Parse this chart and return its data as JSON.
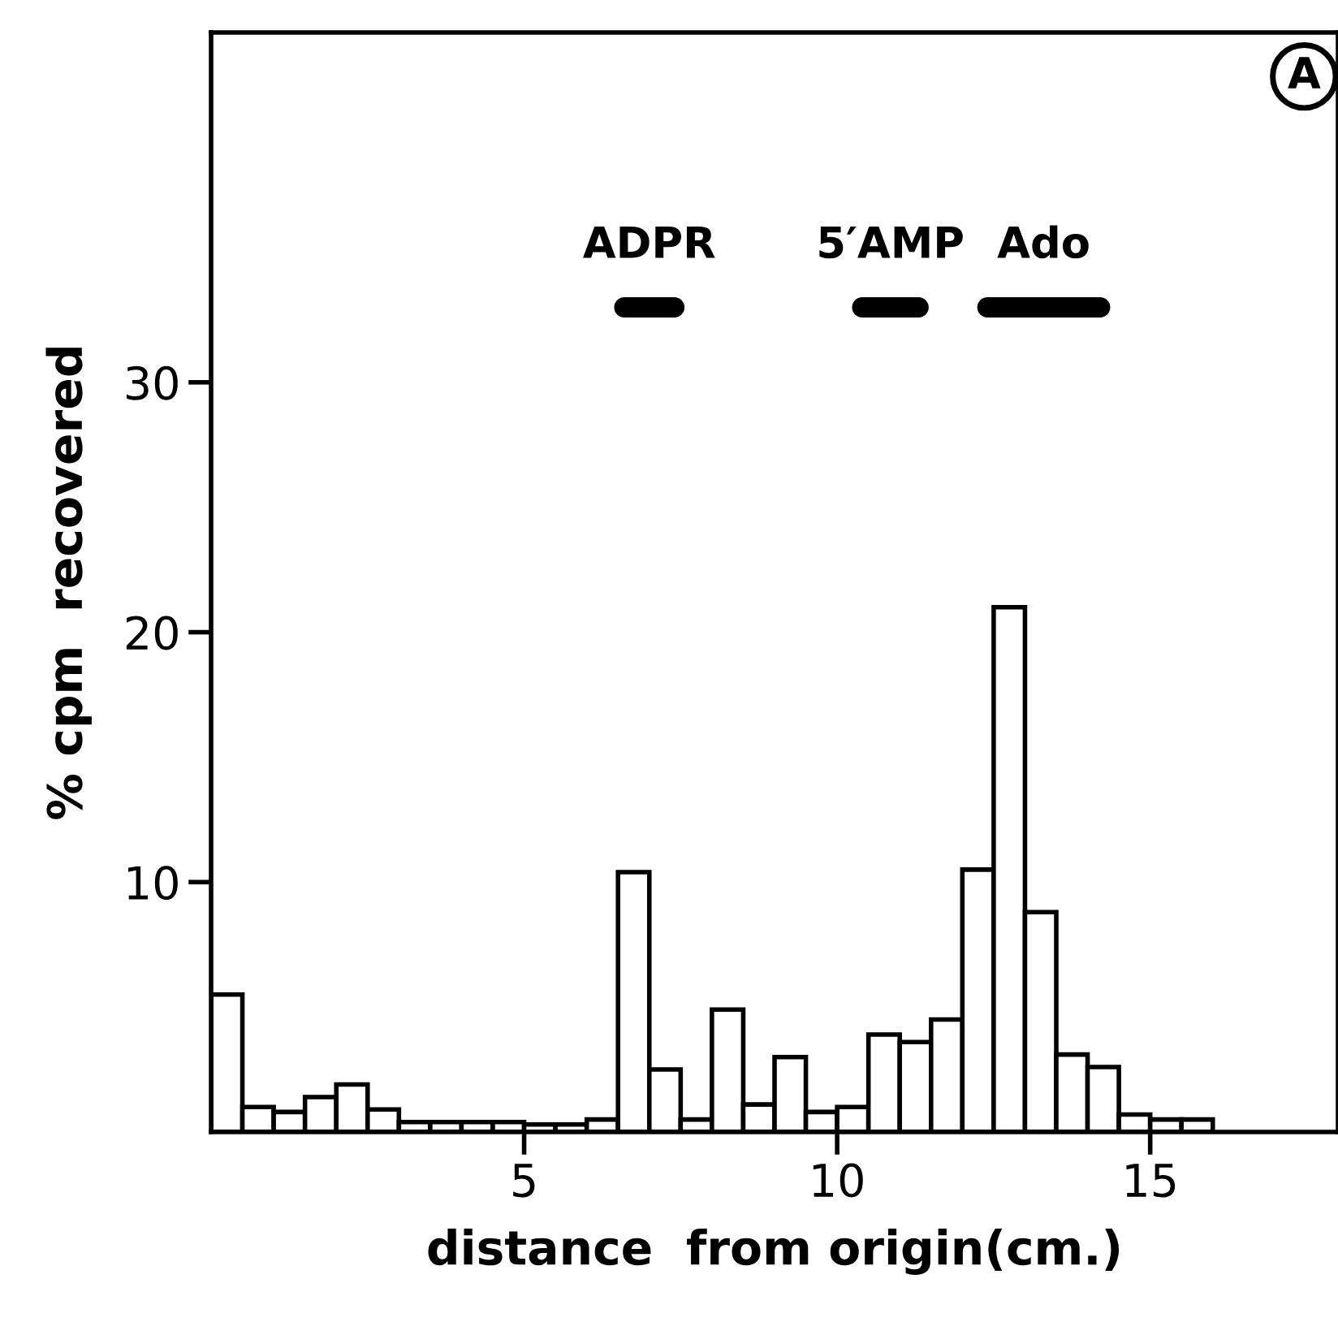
{
  "chart_data": {
    "type": "histogram",
    "xlabel": "distance  from origin(cm.)",
    "ylabel": "% cpm  recovered",
    "bins": [
      0,
      0.5,
      1,
      1.5,
      2,
      2.5,
      3,
      3.5,
      4,
      4.5,
      5,
      5.5,
      6,
      6.5,
      7,
      7.5,
      8,
      8.5,
      9,
      9.5,
      10,
      10.5,
      11,
      11.5,
      12,
      12.5,
      13,
      13.5,
      14,
      14.5,
      15,
      15.5,
      16
    ],
    "values": [
      5.5,
      1.0,
      0.8,
      1.4,
      1.9,
      0.9,
      0.4,
      0.4,
      0.4,
      0.4,
      0.3,
      0.3,
      0.5,
      10.4,
      2.5,
      0.5,
      4.9,
      1.1,
      3.0,
      0.8,
      1.0,
      3.9,
      3.6,
      4.5,
      10.5,
      21.0,
      8.8,
      3.1,
      2.6,
      0.7,
      0.5,
      0.5
    ],
    "color": "#ffffff",
    "series": [
      {
        "type": "line",
        "x": [
          6.6,
          7.4
        ],
        "values": [
          33,
          33
        ],
        "color": "#000000"
      },
      {
        "type": "line",
        "x": [
          10.4,
          11.3
        ],
        "values": [
          33,
          33
        ],
        "color": "#000000"
      },
      {
        "type": "line",
        "x": [
          12.4,
          14.2
        ],
        "values": [
          33,
          33
        ],
        "color": "#000000"
      }
    ],
    "annotations": [
      "ADPR",
      "5′AMP",
      "Ado",
      "A"
    ],
    "xlim": [
      0,
      18
    ],
    "ylim": [
      0,
      44
    ],
    "xticks": [
      5,
      10,
      15
    ],
    "yticks": [
      10,
      20,
      30
    ],
    "grid": false,
    "legend": false
  }
}
